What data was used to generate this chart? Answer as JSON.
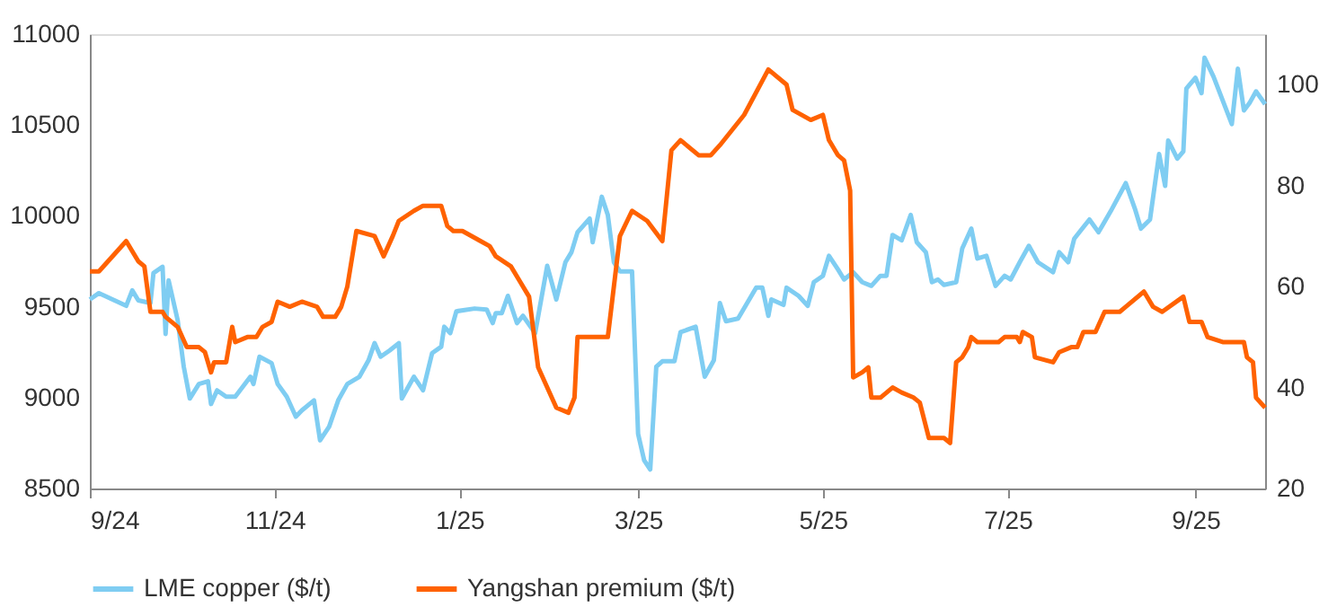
{
  "chart_data": {
    "type": "line",
    "legend": "bottom",
    "grid": false,
    "xlim": [
      "2024-09-01",
      "2025-09-24"
    ],
    "xticks": [
      {
        "value": "2024-09-01",
        "label": "9/24"
      },
      {
        "value": "2024-11-01",
        "label": "11/24"
      },
      {
        "value": "2025-01-01",
        "label": "1/25"
      },
      {
        "value": "2025-03-01",
        "label": "3/25"
      },
      {
        "value": "2025-05-01",
        "label": "5/25"
      },
      {
        "value": "2025-07-01",
        "label": "7/25"
      },
      {
        "value": "2025-09-01",
        "label": "9/25"
      }
    ],
    "ylim": [
      8500,
      11000
    ],
    "yticks": [
      8500,
      9000,
      9500,
      10000,
      10500,
      11000
    ],
    "y2lim": [
      20,
      110
    ],
    "y2ticks": [
      20,
      40,
      60,
      80,
      100
    ],
    "series": [
      {
        "name": "LME copper ($/t)",
        "color": "#7fcdf2",
        "x": [
          "2024-09-01",
          "2024-09-04",
          "2024-09-13",
          "2024-09-15",
          "2024-09-17",
          "2024-09-21",
          "2024-09-22",
          "2024-09-25",
          "2024-09-26",
          "2024-09-27",
          "2024-09-30",
          "2024-10-02",
          "2024-10-04",
          "2024-10-07",
          "2024-10-10",
          "2024-10-11",
          "2024-10-13",
          "2024-10-16",
          "2024-10-19",
          "2024-10-24",
          "2024-10-25",
          "2024-10-27",
          "2024-10-31",
          "2024-11-02",
          "2024-11-05",
          "2024-11-08",
          "2024-11-10",
          "2024-11-14",
          "2024-11-16",
          "2024-11-19",
          "2024-11-22",
          "2024-11-25",
          "2024-11-29",
          "2024-12-02",
          "2024-12-04",
          "2024-12-06",
          "2024-12-09",
          "2024-12-12",
          "2024-12-13",
          "2024-12-17",
          "2024-12-20",
          "2024-12-23",
          "2024-12-26",
          "2024-12-27",
          "2024-12-29",
          "2024-12-31",
          "2025-01-06",
          "2025-01-10",
          "2025-01-12",
          "2025-01-13",
          "2025-01-15",
          "2025-01-17",
          "2025-01-20",
          "2025-01-22",
          "2025-01-26",
          "2025-01-30",
          "2025-02-02",
          "2025-02-05",
          "2025-02-07",
          "2025-02-09",
          "2025-02-13",
          "2025-02-14",
          "2025-02-17",
          "2025-02-19",
          "2025-02-21",
          "2025-02-23",
          "2025-02-27",
          "2025-03-01",
          "2025-03-03",
          "2025-03-05",
          "2025-03-07",
          "2025-03-09",
          "2025-03-13",
          "2025-03-15",
          "2025-03-20",
          "2025-03-23",
          "2025-03-26",
          "2025-03-28",
          "2025-03-30",
          "2025-04-03",
          "2025-04-09",
          "2025-04-11",
          "2025-04-13",
          "2025-04-14",
          "2025-04-18",
          "2025-04-19",
          "2025-04-23",
          "2025-04-26",
          "2025-04-28",
          "2025-05-01",
          "2025-05-03",
          "2025-05-06",
          "2025-05-08",
          "2025-05-11",
          "2025-05-14",
          "2025-05-17",
          "2025-05-20",
          "2025-05-22",
          "2025-05-24",
          "2025-05-27",
          "2025-05-30",
          "2025-06-01",
          "2025-06-04",
          "2025-06-06",
          "2025-06-08",
          "2025-06-10",
          "2025-06-14",
          "2025-06-16",
          "2025-06-19",
          "2025-06-21",
          "2025-06-24",
          "2025-06-27",
          "2025-06-30",
          "2025-07-02",
          "2025-07-05",
          "2025-07-08",
          "2025-07-11",
          "2025-07-16",
          "2025-07-18",
          "2025-07-21",
          "2025-07-23",
          "2025-07-28",
          "2025-07-31",
          "2025-08-04",
          "2025-08-09",
          "2025-08-12",
          "2025-08-14",
          "2025-08-17",
          "2025-08-20",
          "2025-08-22",
          "2025-08-23",
          "2025-08-26",
          "2025-08-28",
          "2025-08-29",
          "2025-09-01",
          "2025-09-03",
          "2025-09-04",
          "2025-09-07",
          "2025-09-10",
          "2025-09-13",
          "2025-09-15",
          "2025-09-17",
          "2025-09-19",
          "2025-09-21",
          "2025-09-24"
        ],
        "values": [
          9540,
          9575,
          9505,
          9590,
          9535,
          9520,
          9685,
          9720,
          9350,
          9645,
          9425,
          9170,
          8995,
          9075,
          9090,
          8965,
          9040,
          9005,
          9005,
          9115,
          9075,
          9225,
          9190,
          9075,
          9005,
          8895,
          8930,
          8985,
          8765,
          8840,
          8985,
          9075,
          9115,
          9205,
          9300,
          9225,
          9260,
          9300,
          8995,
          9115,
          9040,
          9245,
          9280,
          9390,
          9355,
          9475,
          9490,
          9485,
          9410,
          9465,
          9465,
          9560,
          9410,
          9450,
          9355,
          9725,
          9540,
          9745,
          9800,
          9910,
          9985,
          9855,
          10105,
          10005,
          9745,
          9695,
          9695,
          8800,
          8655,
          8605,
          9170,
          9200,
          9200,
          9360,
          9390,
          9115,
          9205,
          9520,
          9420,
          9435,
          9605,
          9605,
          9450,
          9540,
          9510,
          9605,
          9560,
          9505,
          9635,
          9670,
          9780,
          9705,
          9650,
          9690,
          9635,
          9615,
          9670,
          9670,
          9895,
          9865,
          10005,
          9855,
          9800,
          9635,
          9650,
          9620,
          9635,
          9820,
          9930,
          9765,
          9780,
          9615,
          9670,
          9650,
          9745,
          9835,
          9745,
          9690,
          9800,
          9745,
          9875,
          9980,
          9910,
          10025,
          10180,
          10040,
          9930,
          9980,
          10340,
          10165,
          10415,
          10315,
          10355,
          10700,
          10760,
          10675,
          10870,
          10765,
          10635,
          10505,
          10810,
          10580,
          10625,
          10685,
          10615
        ]
      },
      {
        "name": "Yangshan premium ($/t)",
        "color": "#ff6200",
        "axis": "y2",
        "x": [
          "2024-09-01",
          "2024-09-04",
          "2024-09-13",
          "2024-09-15",
          "2024-09-17",
          "2024-09-19",
          "2024-09-21",
          "2024-09-25",
          "2024-09-26",
          "2024-09-30",
          "2024-10-03",
          "2024-10-07",
          "2024-10-09",
          "2024-10-11",
          "2024-10-12",
          "2024-10-16",
          "2024-10-18",
          "2024-10-19",
          "2024-10-23",
          "2024-10-26",
          "2024-10-28",
          "2024-10-31",
          "2024-11-02",
          "2024-11-06",
          "2024-11-10",
          "2024-11-15",
          "2024-11-17",
          "2024-11-21",
          "2024-11-23",
          "2024-11-25",
          "2024-11-28",
          "2024-12-04",
          "2024-12-07",
          "2024-12-10",
          "2024-12-12",
          "2024-12-17",
          "2024-12-20",
          "2024-12-26",
          "2024-12-28",
          "2024-12-30",
          "2025-01-02",
          "2025-01-08",
          "2025-01-11",
          "2025-01-13",
          "2025-01-18",
          "2025-01-21",
          "2025-01-24",
          "2025-01-27",
          "2025-01-30",
          "2025-02-02",
          "2025-02-06",
          "2025-02-08",
          "2025-02-09",
          "2025-02-19",
          "2025-02-23",
          "2025-02-27",
          "2025-03-04",
          "2025-03-09",
          "2025-03-12",
          "2025-03-15",
          "2025-03-21",
          "2025-03-25",
          "2025-03-28",
          "2025-04-05",
          "2025-04-13",
          "2025-04-19",
          "2025-04-21",
          "2025-04-27",
          "2025-05-01",
          "2025-05-03",
          "2025-05-06",
          "2025-05-08",
          "2025-05-10",
          "2025-05-11",
          "2025-05-14",
          "2025-05-16",
          "2025-05-17",
          "2025-05-20",
          "2025-05-24",
          "2025-05-27",
          "2025-05-31",
          "2025-06-02",
          "2025-06-05",
          "2025-06-07",
          "2025-06-10",
          "2025-06-12",
          "2025-06-14",
          "2025-06-16",
          "2025-06-18",
          "2025-06-19",
          "2025-06-21",
          "2025-06-28",
          "2025-06-30",
          "2025-07-04",
          "2025-07-05",
          "2025-07-06",
          "2025-07-09",
          "2025-07-10",
          "2025-07-16",
          "2025-07-18",
          "2025-07-22",
          "2025-07-24",
          "2025-07-26",
          "2025-07-30",
          "2025-08-02",
          "2025-08-07",
          "2025-08-09",
          "2025-08-15",
          "2025-08-18",
          "2025-08-21",
          "2025-08-28",
          "2025-08-30",
          "2025-09-03",
          "2025-09-05",
          "2025-09-10",
          "2025-09-17",
          "2025-09-18",
          "2025-09-20",
          "2025-09-21",
          "2025-09-24"
        ],
        "values": [
          63,
          63,
          69,
          67,
          65,
          64,
          55,
          55,
          54,
          52,
          48,
          48,
          47,
          43,
          45,
          45,
          52,
          49,
          50,
          50,
          52,
          53,
          57,
          56,
          57,
          56,
          54,
          54,
          56,
          60,
          71,
          70,
          66,
          70,
          73,
          75,
          76,
          76,
          72,
          71,
          71,
          69,
          68,
          66,
          64,
          61,
          58,
          44,
          40,
          36,
          35,
          38,
          50,
          50,
          70,
          75,
          73,
          69,
          87,
          89,
          86,
          86,
          88,
          94,
          103,
          100,
          95,
          93,
          94,
          89,
          86,
          85,
          79,
          42,
          43,
          44,
          38,
          38,
          40,
          39,
          38,
          37,
          30,
          30,
          30,
          29,
          45,
          46,
          48,
          50,
          49,
          49,
          50,
          50,
          49,
          51,
          50,
          46,
          45,
          47,
          48,
          48,
          51,
          51,
          55,
          55,
          56,
          59,
          56,
          55,
          58,
          53,
          53,
          50,
          49,
          49,
          46,
          45,
          38,
          36
        ]
      }
    ]
  }
}
